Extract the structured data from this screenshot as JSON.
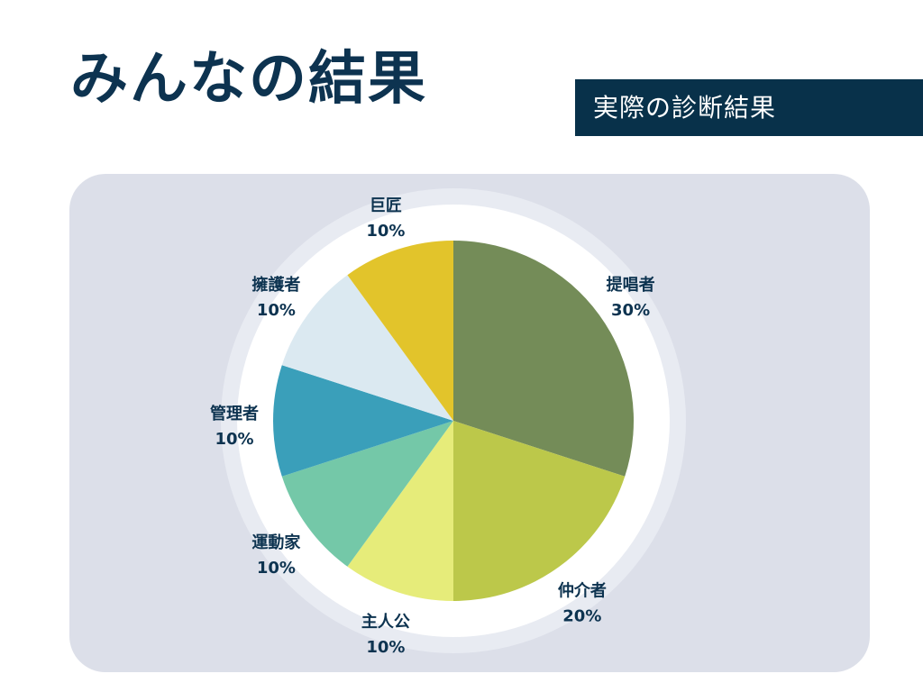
{
  "header": {
    "title": "みんなの結果",
    "tab_label": "実際の診断結果"
  },
  "colors": {
    "title": "#0d3350",
    "tab_background": "#08314a",
    "panel_background": "#dcdfe9"
  },
  "chart_data": {
    "type": "pie",
    "title": "",
    "slices": [
      {
        "label": "提唱者",
        "value": 30,
        "value_label": "30%",
        "color": "#748c58"
      },
      {
        "label": "仲介者",
        "value": 20,
        "value_label": "20%",
        "color": "#bcc84a"
      },
      {
        "label": "主人公",
        "value": 10,
        "value_label": "10%",
        "color": "#e6ec7a"
      },
      {
        "label": "運動家",
        "value": 10,
        "value_label": "10%",
        "color": "#74c8a8"
      },
      {
        "label": "管理者",
        "value": 10,
        "value_label": "10%",
        "color": "#3a9fba"
      },
      {
        "label": "擁護者",
        "value": 10,
        "value_label": "10%",
        "color": "#dbe9f1"
      },
      {
        "label": "巨匠",
        "value": 10,
        "value_label": "10%",
        "color": "#e2c42b"
      }
    ],
    "start_angle": "12 o'clock",
    "direction": "clockwise",
    "legend": "none"
  }
}
